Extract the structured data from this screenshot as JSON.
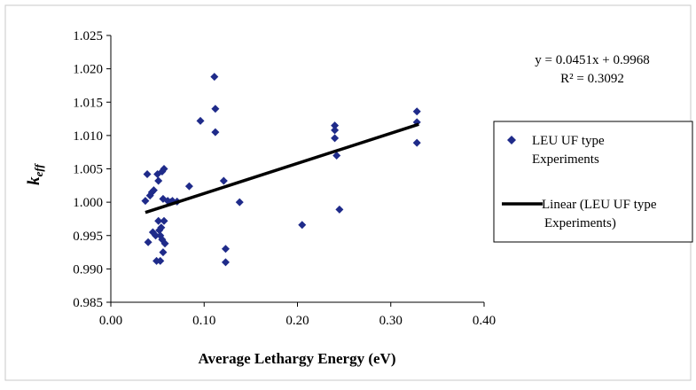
{
  "chart_data": {
    "type": "scatter",
    "title": "",
    "xlabel": "Average Lethargy Energy (eV)",
    "ylabel_main": "k",
    "ylabel_sub": "eff",
    "xlim": [
      0.0,
      0.4
    ],
    "ylim": [
      0.985,
      1.025
    ],
    "x_ticks": [
      "0.00",
      "0.10",
      "0.20",
      "0.30",
      "0.40"
    ],
    "y_ticks": [
      "0.985",
      "0.990",
      "0.995",
      "1.000",
      "1.005",
      "1.010",
      "1.015",
      "1.020",
      "1.025"
    ],
    "grid": false,
    "legend_position": "right",
    "trendline": {
      "slope": 0.0451,
      "intercept": 0.9968,
      "equation": "y = 0.0451x + 0.9968",
      "r_squared": "R² = 0.3092",
      "x_range": [
        0.037,
        0.33
      ],
      "color": "#000000"
    },
    "series": [
      {
        "name_line1": "LEU UF type",
        "name_line2": "Experiments",
        "marker": "diamond",
        "color": "#1f2b8a",
        "points": [
          [
            0.037,
            1.0002
          ],
          [
            0.039,
            1.0042
          ],
          [
            0.04,
            0.994
          ],
          [
            0.042,
            1.001
          ],
          [
            0.044,
            1.0015
          ],
          [
            0.045,
            0.9955
          ],
          [
            0.046,
            1.0018
          ],
          [
            0.048,
            0.995
          ],
          [
            0.049,
            0.9912
          ],
          [
            0.05,
            1.0042
          ],
          [
            0.051,
            1.0032
          ],
          [
            0.051,
            0.9972
          ],
          [
            0.052,
            0.9958
          ],
          [
            0.053,
            0.995
          ],
          [
            0.053,
            0.9912
          ],
          [
            0.054,
            0.9962
          ],
          [
            0.055,
            1.0046
          ],
          [
            0.055,
            0.9944
          ],
          [
            0.056,
            1.0005
          ],
          [
            0.056,
            0.9925
          ],
          [
            0.057,
            1.005
          ],
          [
            0.057,
            0.9972
          ],
          [
            0.058,
            0.9938
          ],
          [
            0.061,
            1.0002
          ],
          [
            0.064,
            1.0
          ],
          [
            0.066,
            1.0002
          ],
          [
            0.071,
            1.0001
          ],
          [
            0.084,
            1.0024
          ],
          [
            0.096,
            1.0122
          ],
          [
            0.111,
            1.0188
          ],
          [
            0.112,
            1.014
          ],
          [
            0.112,
            1.0105
          ],
          [
            0.121,
            1.0032
          ],
          [
            0.123,
            0.993
          ],
          [
            0.123,
            0.991
          ],
          [
            0.138,
            1.0
          ],
          [
            0.205,
            0.9966
          ],
          [
            0.24,
            1.0115
          ],
          [
            0.24,
            1.0108
          ],
          [
            0.24,
            1.0096
          ],
          [
            0.242,
            1.007
          ],
          [
            0.245,
            0.9989
          ],
          [
            0.328,
            1.0136
          ],
          [
            0.328,
            1.012
          ],
          [
            0.328,
            1.0089
          ]
        ]
      }
    ],
    "legend": {
      "line_label_line1": "Linear (LEU UF type",
      "line_label_line2": "Experiments)"
    }
  }
}
